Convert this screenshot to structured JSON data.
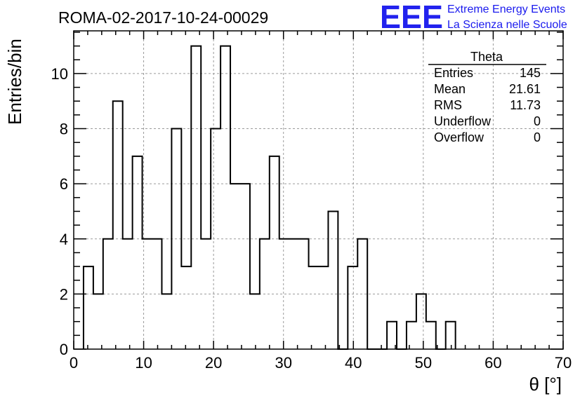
{
  "title": "ROMA-02-2017-10-24-00029",
  "logo": {
    "letters": "EEE",
    "line1": "Extreme Energy Events",
    "line2": "La Scienza nelle Scuole",
    "color": "#2222ee"
  },
  "stats": {
    "name": "Theta",
    "rows": [
      {
        "label": "Entries",
        "value": "145"
      },
      {
        "label": "Mean",
        "value": "21.61"
      },
      {
        "label": "RMS",
        "value": "11.73"
      },
      {
        "label": "Underflow",
        "value": "0"
      },
      {
        "label": "Overflow",
        "value": "0"
      }
    ]
  },
  "chart_data": {
    "type": "histogram",
    "xlabel": "θ [°]",
    "ylabel": "Entries/bin",
    "xlim": [
      0,
      70
    ],
    "ylim": [
      0,
      11.55
    ],
    "xticks": [
      0,
      10,
      20,
      30,
      40,
      50,
      60,
      70
    ],
    "yticks": [
      0,
      2,
      4,
      6,
      8,
      10
    ],
    "grid": true,
    "bin_edges": [
      1.4,
      2.8,
      4.2,
      5.6,
      7.0,
      8.4,
      9.8,
      11.2,
      12.6,
      14.0,
      15.4,
      16.8,
      18.2,
      19.6,
      21.0,
      22.4,
      23.8,
      25.2,
      26.6,
      28.0,
      29.4,
      30.8,
      32.2,
      33.6,
      35.0,
      36.4,
      37.8,
      39.2,
      40.6,
      42.0,
      43.4,
      44.8,
      46.2,
      47.6,
      49.0,
      50.4,
      51.8,
      53.2,
      54.6
    ],
    "counts": [
      3,
      2,
      4,
      9,
      4,
      7,
      4,
      4,
      2,
      8,
      3,
      11,
      4,
      8,
      11,
      6,
      6,
      2,
      4,
      7,
      4,
      4,
      4,
      3,
      3,
      5,
      0,
      3,
      4,
      0,
      0,
      1,
      0,
      1,
      2,
      1,
      0,
      1
    ]
  }
}
